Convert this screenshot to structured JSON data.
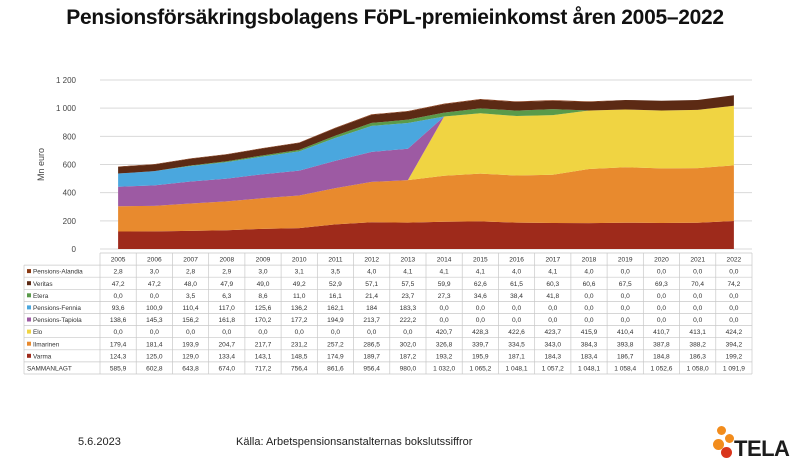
{
  "chart_data": {
    "type": "area",
    "stacked": true,
    "title": "Pensionsförsäkringsbolagens FöPL-premieinkomst åren 2005–2022",
    "ylabel": "Mn euro",
    "ylim": [
      0,
      1200
    ],
    "yticks": [
      "0",
      "200",
      "400",
      "600",
      "800",
      "1 000",
      "1 200"
    ],
    "yticks_values": [
      0,
      200,
      400,
      600,
      800,
      1000,
      1200
    ],
    "categories": [
      "2005",
      "2006",
      "2007",
      "2008",
      "2009",
      "2010",
      "2011",
      "2012",
      "2013",
      "2014",
      "2015",
      "2016",
      "2017",
      "2018",
      "2019",
      "2020",
      "2021",
      "2022"
    ],
    "series": [
      {
        "name": "Varma",
        "color": "#9e2a1b",
        "values": [
          124.3,
          125.0,
          129.0,
          133.4,
          143.1,
          148.5,
          174.9,
          189.7,
          187.2,
          193.2,
          195.9,
          187.1,
          184.3,
          183.4,
          186.7,
          184.8,
          186.3,
          199.2
        ],
        "labels": [
          "124,3",
          "125,0",
          "129,0",
          "133,4",
          "143,1",
          "148,5",
          "174,9",
          "189,7",
          "187,2",
          "193,2",
          "195,9",
          "187,1",
          "184,3",
          "183,4",
          "186,7",
          "184,8",
          "186,3",
          "199,2"
        ]
      },
      {
        "name": "Ilmarinen",
        "color": "#e88a2e",
        "values": [
          179.4,
          181.4,
          193.9,
          204.7,
          217.7,
          231.2,
          257.2,
          286.5,
          302.0,
          326.8,
          339.7,
          334.5,
          343.0,
          384.3,
          393.8,
          387.8,
          388.2,
          394.2
        ],
        "labels": [
          "179,4",
          "181,4",
          "193,9",
          "204,7",
          "217,7",
          "231,2",
          "257,2",
          "286,5",
          "302,0",
          "326,8",
          "339,7",
          "334,5",
          "343,0",
          "384,3",
          "393,8",
          "387,8",
          "388,2",
          "394,2"
        ]
      },
      {
        "name": "Elo",
        "color": "#f0d442",
        "values": [
          0,
          0,
          0,
          0,
          0,
          0,
          0,
          0,
          0,
          420.7,
          428.3,
          422.6,
          423.7,
          415.9,
          410.4,
          410.7,
          413.1,
          424.2
        ],
        "labels": [
          "0,0",
          "0,0",
          "0,0",
          "0,0",
          "0,0",
          "0,0",
          "0,0",
          "0,0",
          "0,0",
          "420,7",
          "428,3",
          "422,6",
          "423,7",
          "415,9",
          "410,4",
          "410,7",
          "413,1",
          "424,2"
        ]
      },
      {
        "name": "Pensions-Tapiola",
        "color": "#9d5aa3",
        "values": [
          138.6,
          145.3,
          156.2,
          161.8,
          170.2,
          177.2,
          194.9,
          213.7,
          222.2,
          0,
          0,
          0,
          0,
          0,
          0,
          0,
          0,
          0
        ],
        "labels": [
          "138,6",
          "145,3",
          "156,2",
          "161,8",
          "170,2",
          "177,2",
          "194,9",
          "213,7",
          "222,2",
          "0,0",
          "0,0",
          "0,0",
          "0,0",
          "0,0",
          "0,0",
          "0,0",
          "0,0",
          "0,0"
        ]
      },
      {
        "name": "Pensions-Fennia",
        "color": "#4aa7de",
        "values": [
          93.6,
          100.9,
          110.4,
          117.0,
          125.6,
          136.2,
          162.1,
          184,
          183.3,
          0,
          0,
          0,
          0,
          0,
          0,
          0,
          0,
          0
        ],
        "labels": [
          "93,6",
          "100,9",
          "110,4",
          "117,0",
          "125,6",
          "136,2",
          "162,1",
          "184",
          "183,3",
          "0,0",
          "0,0",
          "0,0",
          "0,0",
          "0,0",
          "0,0",
          "0,0",
          "0,0",
          "0,0"
        ]
      },
      {
        "name": "Etera",
        "color": "#5a9a4a",
        "values": [
          0,
          0,
          3.5,
          6.3,
          8.6,
          11.0,
          16.1,
          21.4,
          23.7,
          27.3,
          34.6,
          38.4,
          41.8,
          0,
          0,
          0,
          0,
          0
        ],
        "labels": [
          "0,0",
          "0,0",
          "3,5",
          "6,3",
          "8,6",
          "11,0",
          "16,1",
          "21,4",
          "23,7",
          "27,3",
          "34,6",
          "38,4",
          "41,8",
          "0,0",
          "0,0",
          "0,0",
          "0,0",
          "0,0"
        ]
      },
      {
        "name": "Veritas",
        "color": "#5c2a14",
        "values": [
          47.2,
          47.2,
          48.0,
          47.9,
          49.0,
          49.2,
          52.9,
          57.1,
          57.5,
          59.9,
          62.6,
          61.5,
          60.3,
          60.6,
          67.5,
          69.3,
          70.4,
          74.2
        ],
        "labels": [
          "47,2",
          "47,2",
          "48,0",
          "47,9",
          "49,0",
          "49,2",
          "52,9",
          "57,1",
          "57,5",
          "59,9",
          "62,6",
          "61,5",
          "60,3",
          "60,6",
          "67,5",
          "69,3",
          "70,4",
          "74,2"
        ]
      },
      {
        "name": "Pensions-Alandia",
        "color": "#8a3a14",
        "values": [
          2.8,
          3.0,
          2.8,
          2.9,
          3.0,
          3.1,
          3.5,
          4.0,
          4.1,
          4.1,
          4.1,
          4.0,
          4.1,
          4.0,
          0,
          0,
          0,
          0
        ],
        "labels": [
          "2,8",
          "3,0",
          "2,8",
          "2,9",
          "3,0",
          "3,1",
          "3,5",
          "4,0",
          "4,1",
          "4,1",
          "4,1",
          "4,0",
          "4,1",
          "4,0",
          "0,0",
          "0,0",
          "0,0",
          "0,0"
        ]
      }
    ],
    "table_order": [
      "Pensions-Alandia",
      "Veritas",
      "Etera",
      "Pensions-Fennia",
      "Pensions-Tapiola",
      "Elo",
      "Ilmarinen",
      "Varma"
    ],
    "total_label": "SAMMANLAGT",
    "totals": [
      585.9,
      602.8,
      643.8,
      674.0,
      717.2,
      756.4,
      861.6,
      956.4,
      980.0,
      1032.0,
      1065.2,
      1048.1,
      1057.2,
      1048.1,
      1058.4,
      1052.6,
      1058.0,
      1091.9
    ],
    "totals_labels": [
      "585,9",
      "602,8",
      "643,8",
      "674,0",
      "717,2",
      "756,4",
      "861,6",
      "956,4",
      "980,0",
      "1 032,0",
      "1 065,2",
      "1 048,1",
      "1 057,2",
      "1 048,1",
      "1 058,4",
      "1 052,6",
      "1 058,0",
      "1 091,9"
    ],
    "grid": true,
    "legend": "table"
  },
  "footer": {
    "date": "5.6.2023",
    "source": "Källa: Arbetspensionsanstalternas bokslutssiffror"
  },
  "logo": {
    "text": "TELA",
    "colors": [
      "#f28c1c",
      "#d9351c"
    ]
  }
}
